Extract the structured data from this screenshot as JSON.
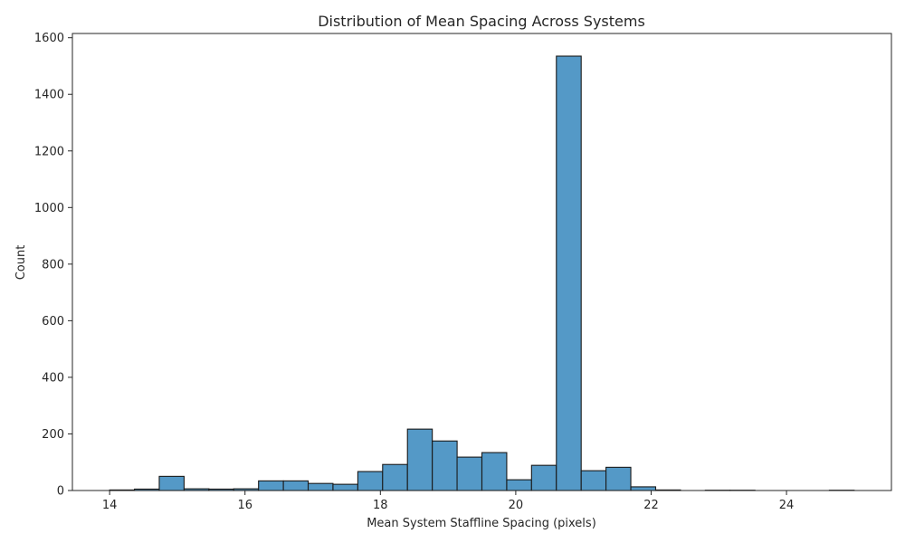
{
  "chart_data": {
    "type": "bar",
    "title": "Distribution of Mean Spacing Across Systems",
    "xlabel": "Mean System Staffline Spacing (pixels)",
    "ylabel": "Count",
    "xlim": [
      13.45,
      25.55
    ],
    "ylim": [
      0,
      1615
    ],
    "xticks": [
      14,
      16,
      18,
      20,
      22,
      24
    ],
    "yticks": [
      0,
      200,
      400,
      600,
      800,
      1000,
      1200,
      1400,
      1600
    ],
    "bin_width": 0.3667,
    "bins": [
      {
        "x0": 14.0,
        "value": 2
      },
      {
        "x0": 14.367,
        "value": 5
      },
      {
        "x0": 14.733,
        "value": 50
      },
      {
        "x0": 15.1,
        "value": 6
      },
      {
        "x0": 15.467,
        "value": 5
      },
      {
        "x0": 15.833,
        "value": 6
      },
      {
        "x0": 16.2,
        "value": 34
      },
      {
        "x0": 16.567,
        "value": 34
      },
      {
        "x0": 16.933,
        "value": 25
      },
      {
        "x0": 17.3,
        "value": 22
      },
      {
        "x0": 17.667,
        "value": 67
      },
      {
        "x0": 18.033,
        "value": 92
      },
      {
        "x0": 18.4,
        "value": 217
      },
      {
        "x0": 18.767,
        "value": 175
      },
      {
        "x0": 19.133,
        "value": 118
      },
      {
        "x0": 19.5,
        "value": 134
      },
      {
        "x0": 19.867,
        "value": 38
      },
      {
        "x0": 20.233,
        "value": 89
      },
      {
        "x0": 20.6,
        "value": 1535
      },
      {
        "x0": 20.967,
        "value": 70
      },
      {
        "x0": 21.333,
        "value": 82
      },
      {
        "x0": 21.7,
        "value": 13
      },
      {
        "x0": 22.067,
        "value": 2
      },
      {
        "x0": 22.433,
        "value": 0
      },
      {
        "x0": 22.8,
        "value": 1
      },
      {
        "x0": 23.167,
        "value": 1
      },
      {
        "x0": 23.533,
        "value": 0
      },
      {
        "x0": 23.9,
        "value": 0
      },
      {
        "x0": 24.267,
        "value": 0
      },
      {
        "x0": 24.633,
        "value": 1
      }
    ],
    "grid": false,
    "colors": {
      "bar": "#5499c7",
      "edge": "#1a1a1a"
    }
  }
}
